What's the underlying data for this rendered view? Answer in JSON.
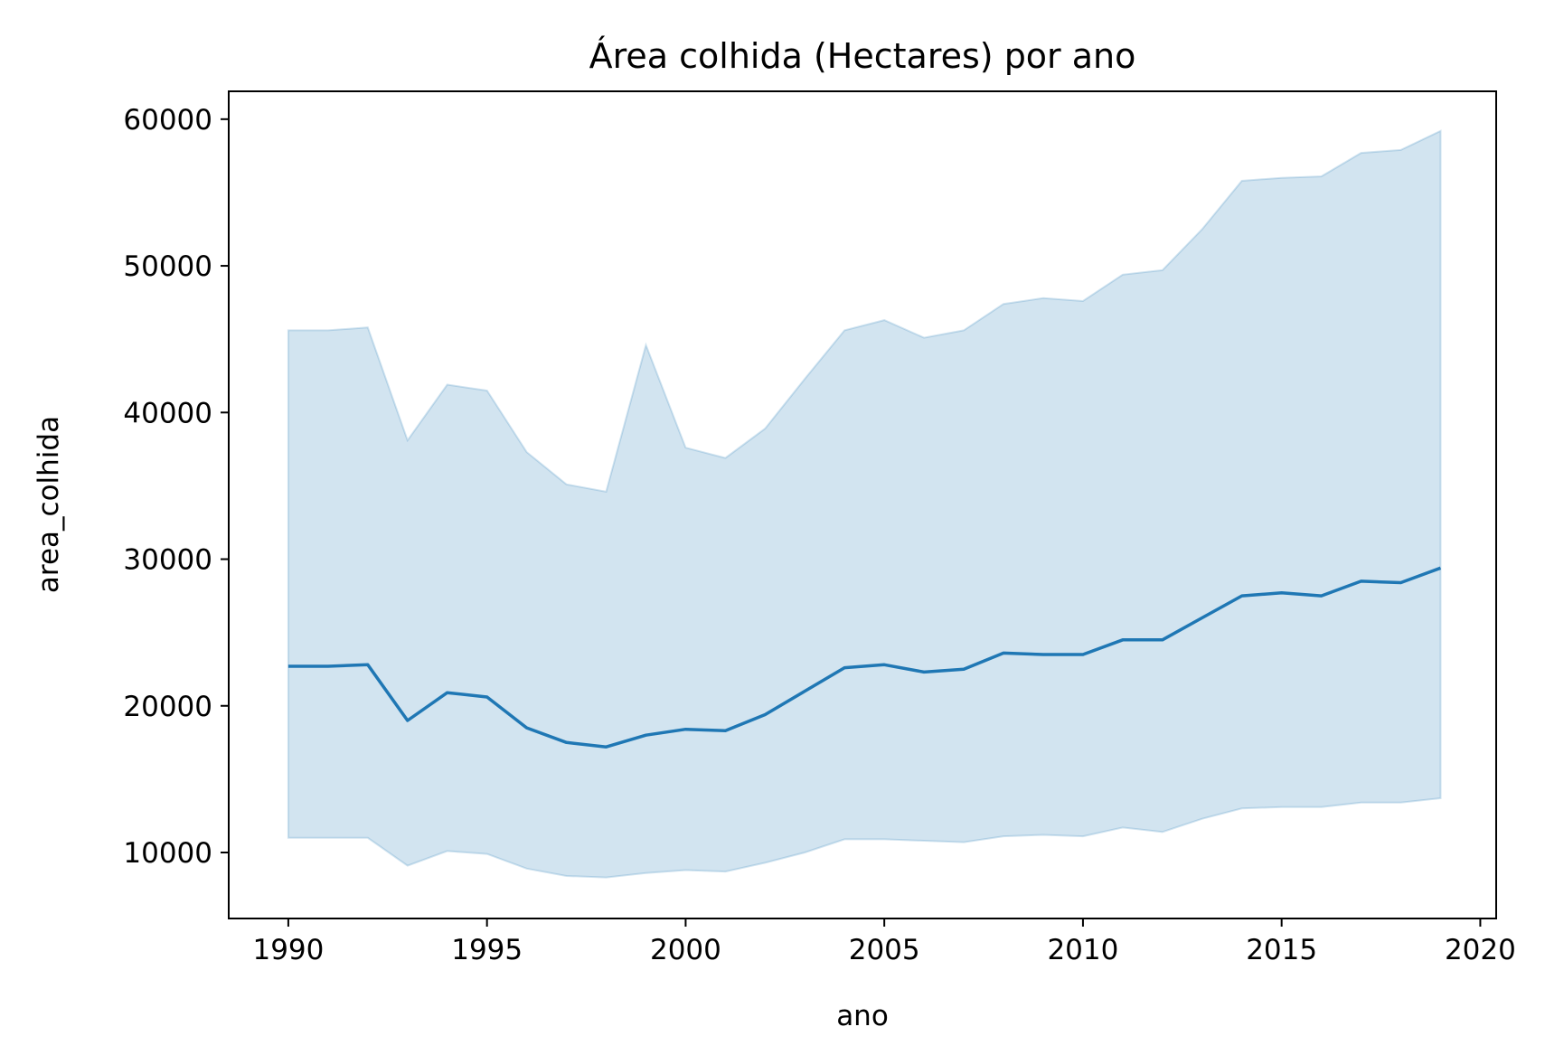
{
  "chart_data": {
    "type": "line",
    "title": "Área colhida (Hectares) por ano",
    "xlabel": "ano",
    "ylabel": "area_colhida",
    "xlim": [
      1988.5,
      2020.4
    ],
    "ylim": [
      5500,
      61900
    ],
    "x_ticks": [
      1990,
      1995,
      2000,
      2005,
      2010,
      2015,
      2020
    ],
    "y_ticks": [
      10000,
      20000,
      30000,
      40000,
      50000,
      60000
    ],
    "grid": false,
    "colors": {
      "line": "#1f77b4",
      "band": "#1f77b4"
    },
    "series": [
      {
        "x": [
          1990,
          1991,
          1992,
          1993,
          1994,
          1995,
          1996,
          1997,
          1998,
          1999,
          2000,
          2001,
          2002,
          2003,
          2004,
          2005,
          2006,
          2007,
          2008,
          2009,
          2010,
          2011,
          2012,
          2013,
          2014,
          2015,
          2016,
          2017,
          2018,
          2019
        ],
        "mean": [
          22700,
          22700,
          22800,
          19000,
          20900,
          20600,
          18500,
          17500,
          17200,
          18000,
          18400,
          18300,
          19400,
          21000,
          22600,
          22800,
          22300,
          22500,
          23600,
          23500,
          23500,
          24500,
          24500,
          26000,
          27500,
          27700,
          27500,
          28500,
          28400,
          29400
        ],
        "lower": [
          11000,
          11000,
          11000,
          9100,
          10100,
          9900,
          8900,
          8400,
          8300,
          8600,
          8800,
          8700,
          9300,
          10000,
          10900,
          10900,
          10800,
          10700,
          11100,
          11200,
          11100,
          11700,
          11400,
          12300,
          13000,
          13100,
          13100,
          13400,
          13400,
          13700
        ],
        "upper": [
          45600,
          45600,
          45800,
          38100,
          41900,
          41500,
          37300,
          35100,
          34600,
          44600,
          37600,
          36900,
          38900,
          42300,
          45600,
          46300,
          45100,
          45600,
          47400,
          47800,
          47600,
          49400,
          49700,
          52500,
          55800,
          56000,
          56100,
          57700,
          57900,
          59200
        ]
      }
    ]
  }
}
